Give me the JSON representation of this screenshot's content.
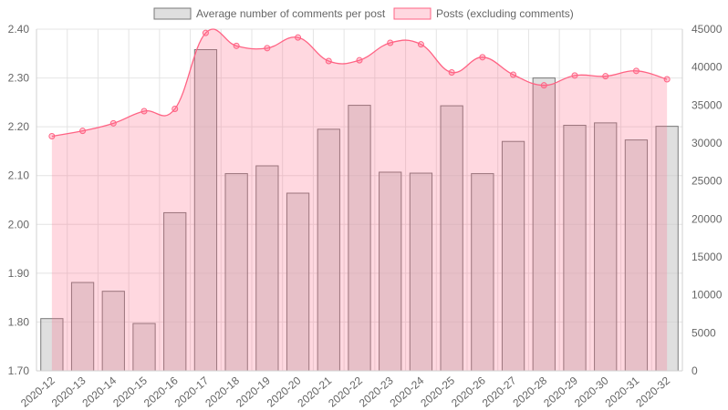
{
  "chart_data": {
    "type": "bar",
    "categories": [
      "2020-12",
      "2020-13",
      "2020-14",
      "2020-15",
      "2020-16",
      "2020-17",
      "2020-18",
      "2020-19",
      "2020-20",
      "2020-21",
      "2020-22",
      "2020-23",
      "2020-24",
      "2020-25",
      "2020-26",
      "2020-27",
      "2020-28",
      "2020-29",
      "2020-30",
      "2020-31",
      "2020-32"
    ],
    "series": [
      {
        "name": "Average number of comments per post",
        "type": "bar",
        "axis": "left",
        "color": "#c9c9c9",
        "border": "#7a7a7a",
        "values": [
          1.807,
          1.881,
          1.863,
          1.797,
          2.024,
          2.358,
          2.104,
          2.12,
          2.064,
          2.195,
          2.244,
          2.107,
          2.105,
          2.243,
          2.104,
          2.17,
          2.3,
          2.203,
          2.208,
          2.173,
          2.201
        ]
      },
      {
        "name": "Posts (excluding comments)",
        "type": "area",
        "axis": "right",
        "color": "#ff6384",
        "fill": "#ffb1c1",
        "values": [
          30900,
          31600,
          32600,
          34200,
          34500,
          44500,
          42800,
          42500,
          43900,
          40800,
          40900,
          43200,
          43000,
          39300,
          41300,
          39000,
          37600,
          38900,
          38800,
          39500,
          38400
        ]
      }
    ],
    "y_left": {
      "min": 1.7,
      "max": 2.4,
      "ticks": [
        "1.70",
        "1.80",
        "1.90",
        "2.00",
        "2.10",
        "2.20",
        "2.30",
        "2.40"
      ]
    },
    "y_right": {
      "min": 0,
      "max": 45000,
      "ticks": [
        "0",
        "5000",
        "10000",
        "15000",
        "20000",
        "25000",
        "30000",
        "35000",
        "40000",
        "45000"
      ]
    },
    "grid": true,
    "legend_position": "top"
  }
}
